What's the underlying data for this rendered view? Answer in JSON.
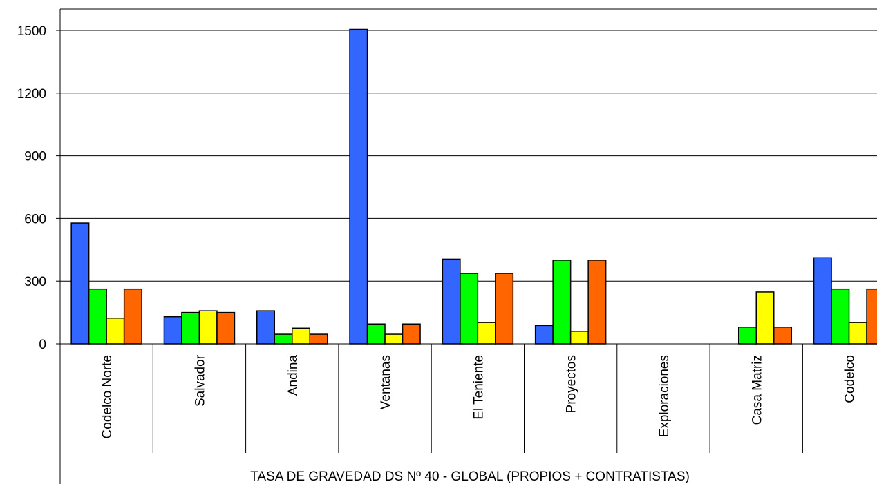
{
  "chart_data": {
    "type": "bar",
    "categories": [
      "Codelco Norte",
      "Salvador",
      "Andina",
      "Ventanas",
      "El Teniente",
      "Proyectos",
      "Exploraciones",
      "Casa Matriz",
      "Codelco"
    ],
    "series": [
      {
        "color": "#3366ff",
        "values": [
          578,
          130,
          158,
          1505,
          405,
          88,
          0,
          0,
          412
        ]
      },
      {
        "color": "#00ff00",
        "values": [
          262,
          150,
          46,
          95,
          337,
          400,
          0,
          80,
          262
        ]
      },
      {
        "color": "#ffff00",
        "values": [
          123,
          158,
          75,
          46,
          102,
          60,
          0,
          248,
          102
        ]
      },
      {
        "color": "#ff6600",
        "values": [
          262,
          150,
          46,
          95,
          337,
          400,
          0,
          80,
          262
        ]
      }
    ],
    "yticks": [
      "0",
      "300",
      "600",
      "900",
      "1200",
      "1500"
    ],
    "ylim": [
      0,
      1500
    ],
    "xlabel": "TASA DE GRAVEDAD DS Nº 40 - GLOBAL (PROPIOS + CONTRATISTAS)",
    "grid": true,
    "legend": "none"
  }
}
